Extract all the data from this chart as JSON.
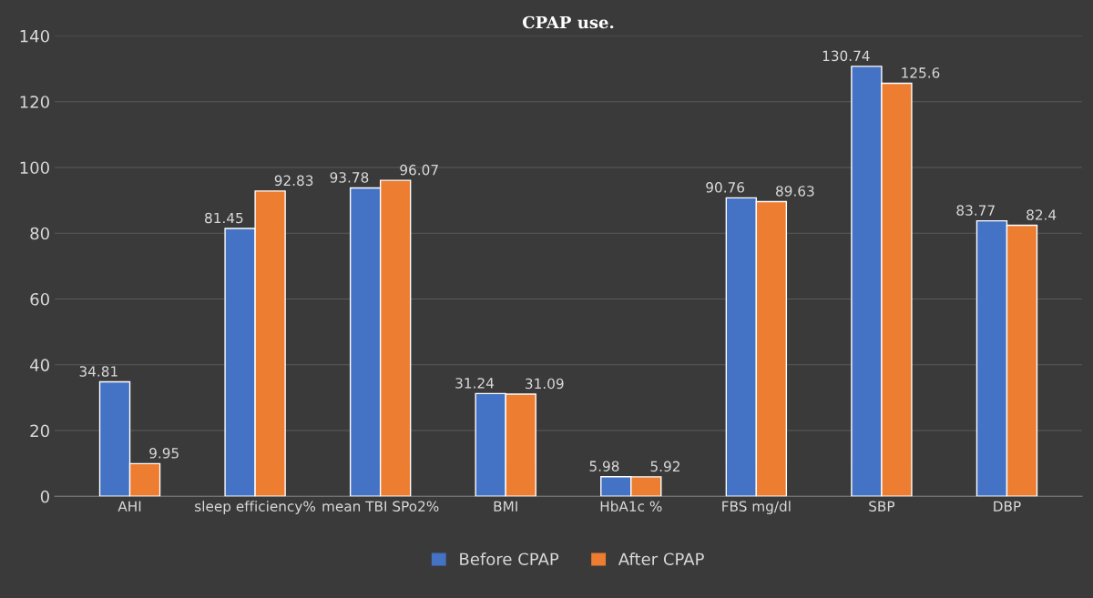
{
  "chart_data": {
    "type": "bar",
    "title": "CPAP use.",
    "categories": [
      "AHI",
      "sleep efficiency%",
      "mean TBI SPo2%",
      "BMI",
      "HbA1c %",
      "FBS mg/dl",
      "SBP",
      "DBP"
    ],
    "series": [
      {
        "name": "Before CPAP",
        "color": "#4472c4",
        "values": [
          34.81,
          81.45,
          93.78,
          31.24,
          5.98,
          90.76,
          130.74,
          83.77
        ]
      },
      {
        "name": "After CPAP",
        "color": "#ed7d31",
        "values": [
          9.95,
          92.83,
          96.07,
          31.09,
          5.92,
          89.63,
          125.6,
          82.4
        ]
      }
    ],
    "ylim": [
      0,
      140
    ],
    "yticks": [
      0,
      20,
      40,
      60,
      80,
      100,
      120,
      140
    ],
    "grid": "y",
    "legend": "bottom",
    "data_labels": true
  }
}
